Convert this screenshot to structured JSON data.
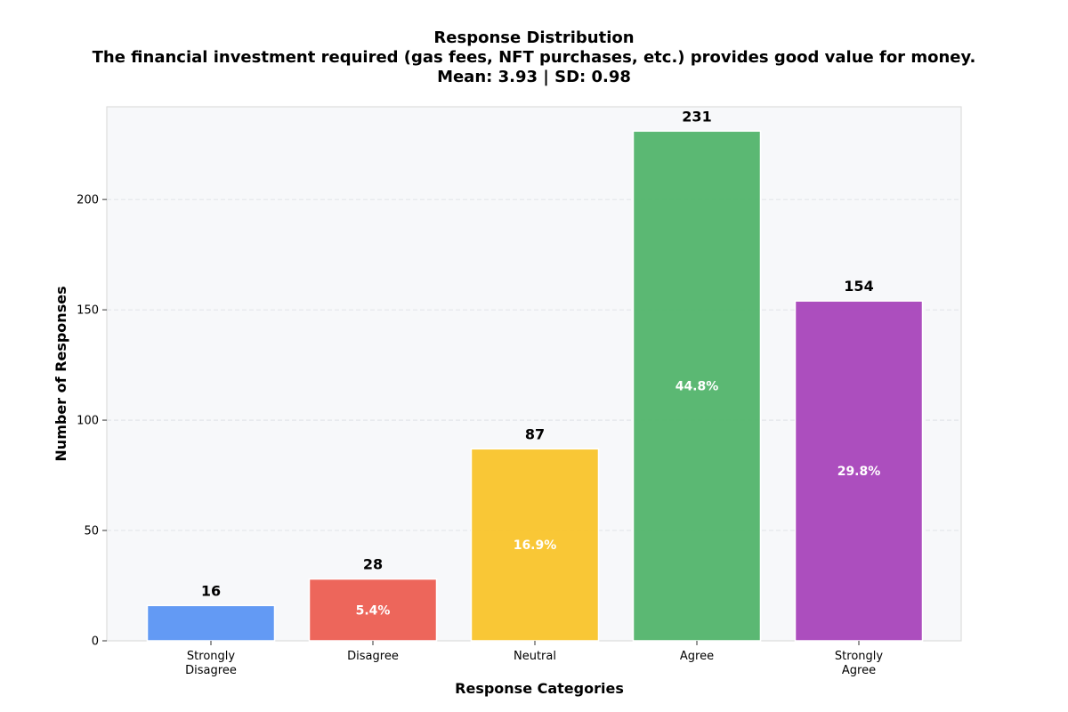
{
  "chart_data": {
    "type": "bar",
    "title": "Response Distribution",
    "subtitle": "The financial investment required (gas fees, NFT purchases, etc.) provides good value for money.",
    "stats_line": "Mean: 3.93 | SD: 0.98",
    "xlabel": "Response Categories",
    "ylabel": "Number of Responses",
    "categories": [
      [
        "Strongly",
        "Disagree"
      ],
      [
        "Disagree"
      ],
      [
        "Neutral"
      ],
      [
        "Agree"
      ],
      [
        "Strongly",
        "Agree"
      ]
    ],
    "values": [
      16,
      28,
      87,
      231,
      154
    ],
    "percent_labels": [
      "",
      "5.4%",
      "16.9%",
      "44.8%",
      "29.8%"
    ],
    "colors": [
      "#5b95f3",
      "#ec5e52",
      "#f9c42b",
      "#52b46b",
      "#a845ba"
    ],
    "ylim": [
      0,
      242
    ],
    "yticks": [
      0,
      50,
      100,
      150,
      200
    ],
    "grid": true,
    "plot_background": "#f7f8fa"
  }
}
